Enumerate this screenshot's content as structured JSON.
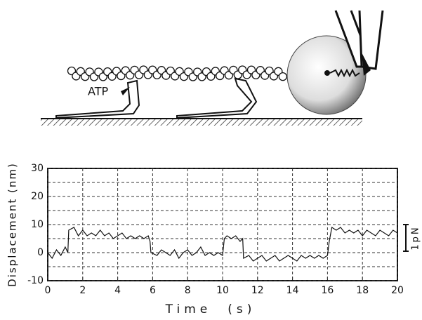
{
  "chart_data": {
    "type": "line",
    "x_label": "Time　(s)",
    "y_label": "Displacement (nm)",
    "annotations": [
      "ATP",
      "1pN"
    ],
    "xlim": [
      0,
      20
    ],
    "xticks": [
      0,
      2,
      4,
      6,
      8,
      10,
      12,
      14,
      16,
      18,
      20
    ],
    "ylim": [
      -10,
      30
    ],
    "yticks": [
      -10,
      0,
      10,
      20,
      30
    ],
    "y_minor_grid": [
      -5,
      5,
      15,
      25
    ],
    "grid": true,
    "series": [
      {
        "color": "#111111",
        "x": [
          0,
          0.25,
          0.5,
          0.75,
          1.0,
          1.15,
          1.2,
          1.5,
          1.75,
          2.0,
          2.25,
          2.5,
          2.75,
          3.0,
          3.25,
          3.5,
          3.75,
          4.0,
          4.25,
          4.5,
          4.75,
          5.0,
          5.25,
          5.5,
          5.75,
          5.85,
          5.9,
          6.25,
          6.5,
          6.75,
          7.0,
          7.25,
          7.5,
          7.75,
          8.0,
          8.25,
          8.5,
          8.75,
          9.0,
          9.25,
          9.5,
          9.75,
          10.0,
          10.1,
          10.25,
          10.5,
          10.75,
          11.0,
          11.15,
          11.2,
          11.5,
          11.75,
          12.0,
          12.25,
          12.5,
          12.75,
          13.0,
          13.25,
          13.5,
          13.75,
          14.0,
          14.25,
          14.5,
          14.75,
          15.0,
          15.25,
          15.5,
          15.75,
          16.0,
          16.1,
          16.25,
          16.5,
          16.75,
          17.0,
          17.25,
          17.5,
          17.75,
          18.0,
          18.25,
          18.5,
          18.75,
          19.0,
          19.25,
          19.5,
          19.75,
          20.0
        ],
        "values": [
          0,
          -2,
          1,
          -1,
          2,
          0,
          8,
          9,
          6,
          8,
          6,
          7,
          6,
          8,
          6,
          7,
          5,
          6,
          7,
          5,
          6,
          5,
          6,
          5,
          6,
          4,
          0,
          -1,
          1,
          0,
          -1,
          1,
          -2,
          0,
          1,
          -1,
          0,
          2,
          -1,
          0,
          -1,
          0,
          -1,
          5,
          6,
          5,
          6,
          4,
          5,
          -2,
          -1,
          -3,
          -2,
          -1,
          -3,
          -2,
          -1,
          -3,
          -2,
          -1,
          -2,
          -3,
          -1,
          -2,
          -1,
          -2,
          -1,
          -2,
          -1,
          4,
          9,
          8,
          9,
          7,
          8,
          7,
          8,
          6,
          8,
          7,
          6,
          8,
          7,
          6,
          8,
          7
        ]
      }
    ]
  }
}
